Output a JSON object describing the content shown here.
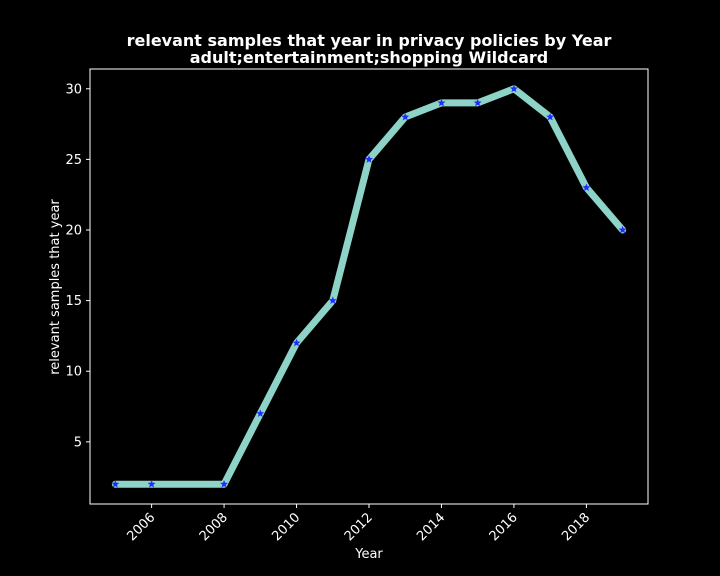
{
  "chart_data": {
    "type": "line",
    "title_lines": [
      "relevant samples that year in privacy policies by Year",
      "adult;entertainment;shopping Wildcard"
    ],
    "xlabel": "Year",
    "ylabel": "relevant samples that year",
    "x": [
      2005,
      2006,
      2008,
      2009,
      2010,
      2011,
      2012,
      2013,
      2014,
      2015,
      2016,
      2017,
      2018,
      2019
    ],
    "series": [
      {
        "values": [
          2,
          2,
          2,
          7,
          12,
          15,
          25,
          28,
          29,
          29,
          30,
          28,
          23,
          20
        ],
        "line_color": "#8dd3c7",
        "marker_color": "#1f2bff",
        "marker": "star"
      }
    ],
    "xticks": [
      "2006",
      "2008",
      "2010",
      "2012",
      "2014",
      "2016",
      "2018"
    ],
    "yticks": [
      "5",
      "10",
      "15",
      "20",
      "25",
      "30"
    ],
    "xlim": [
      2004.3,
      2019.7
    ],
    "ylim": [
      0.6,
      31.4
    ],
    "grid": false,
    "colors": {
      "background": "#000000",
      "axes_frame": "#ffffff",
      "text": "#ffffff"
    }
  }
}
